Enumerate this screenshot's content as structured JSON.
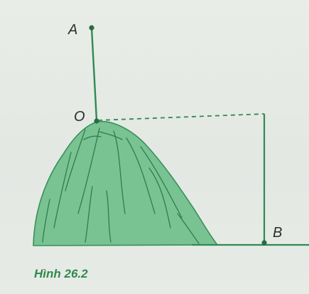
{
  "figure": {
    "caption": "Hình 26.2",
    "points": {
      "A": "A",
      "O": "O",
      "B": "B"
    },
    "colors": {
      "line": "#2f8a52",
      "hill_fill": "#6fbf8a",
      "hill_stroke": "#3a8f5a",
      "caption": "#2e8a4c"
    }
  }
}
